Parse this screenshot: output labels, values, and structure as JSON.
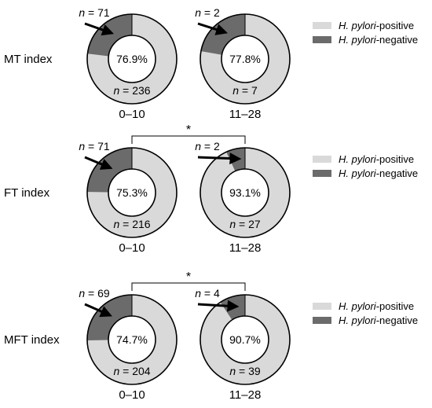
{
  "colors": {
    "positive": "#d9d9d9",
    "negative": "#6b6b6b",
    "outline": "#000000",
    "background": "#ffffff"
  },
  "legend": {
    "positive": {
      "italic": "H. pylori",
      "rest": "-positive"
    },
    "negative": {
      "italic": "H. pylori",
      "rest": "-negative"
    }
  },
  "chart_data": [
    {
      "type": "pie",
      "index_label": "MT index",
      "significance_star": "",
      "groups": [
        {
          "label": "0–10",
          "positive_pct": "76.9%",
          "positive_n": 236,
          "negative_n": 71,
          "n_prefix": "n",
          "positive_text": "= 236",
          "negative_text": "= 71"
        },
        {
          "label": "11–28",
          "positive_pct": "77.8%",
          "positive_n": 7,
          "negative_n": 2,
          "n_prefix": "n",
          "positive_text": "= 7",
          "negative_text": "= 2"
        }
      ]
    },
    {
      "type": "pie",
      "index_label": "FT index",
      "significance_star": "*",
      "groups": [
        {
          "label": "0–10",
          "positive_pct": "75.3%",
          "positive_n": 216,
          "negative_n": 71,
          "n_prefix": "n",
          "positive_text": "= 216",
          "negative_text": "= 71"
        },
        {
          "label": "11–28",
          "positive_pct": "93.1%",
          "positive_n": 27,
          "negative_n": 2,
          "n_prefix": "n",
          "positive_text": "= 27",
          "negative_text": "= 2"
        }
      ]
    },
    {
      "type": "pie",
      "index_label": "MFT index",
      "significance_star": "*",
      "groups": [
        {
          "label": "0–10",
          "positive_pct": "74.7%",
          "positive_n": 204,
          "negative_n": 69,
          "n_prefix": "n",
          "positive_text": "= 204",
          "negative_text": "= 69"
        },
        {
          "label": "11–28",
          "positive_pct": "90.7%",
          "positive_n": 39,
          "negative_n": 4,
          "n_prefix": "n",
          "positive_text": "= 39",
          "negative_text": "= 4"
        }
      ]
    }
  ]
}
